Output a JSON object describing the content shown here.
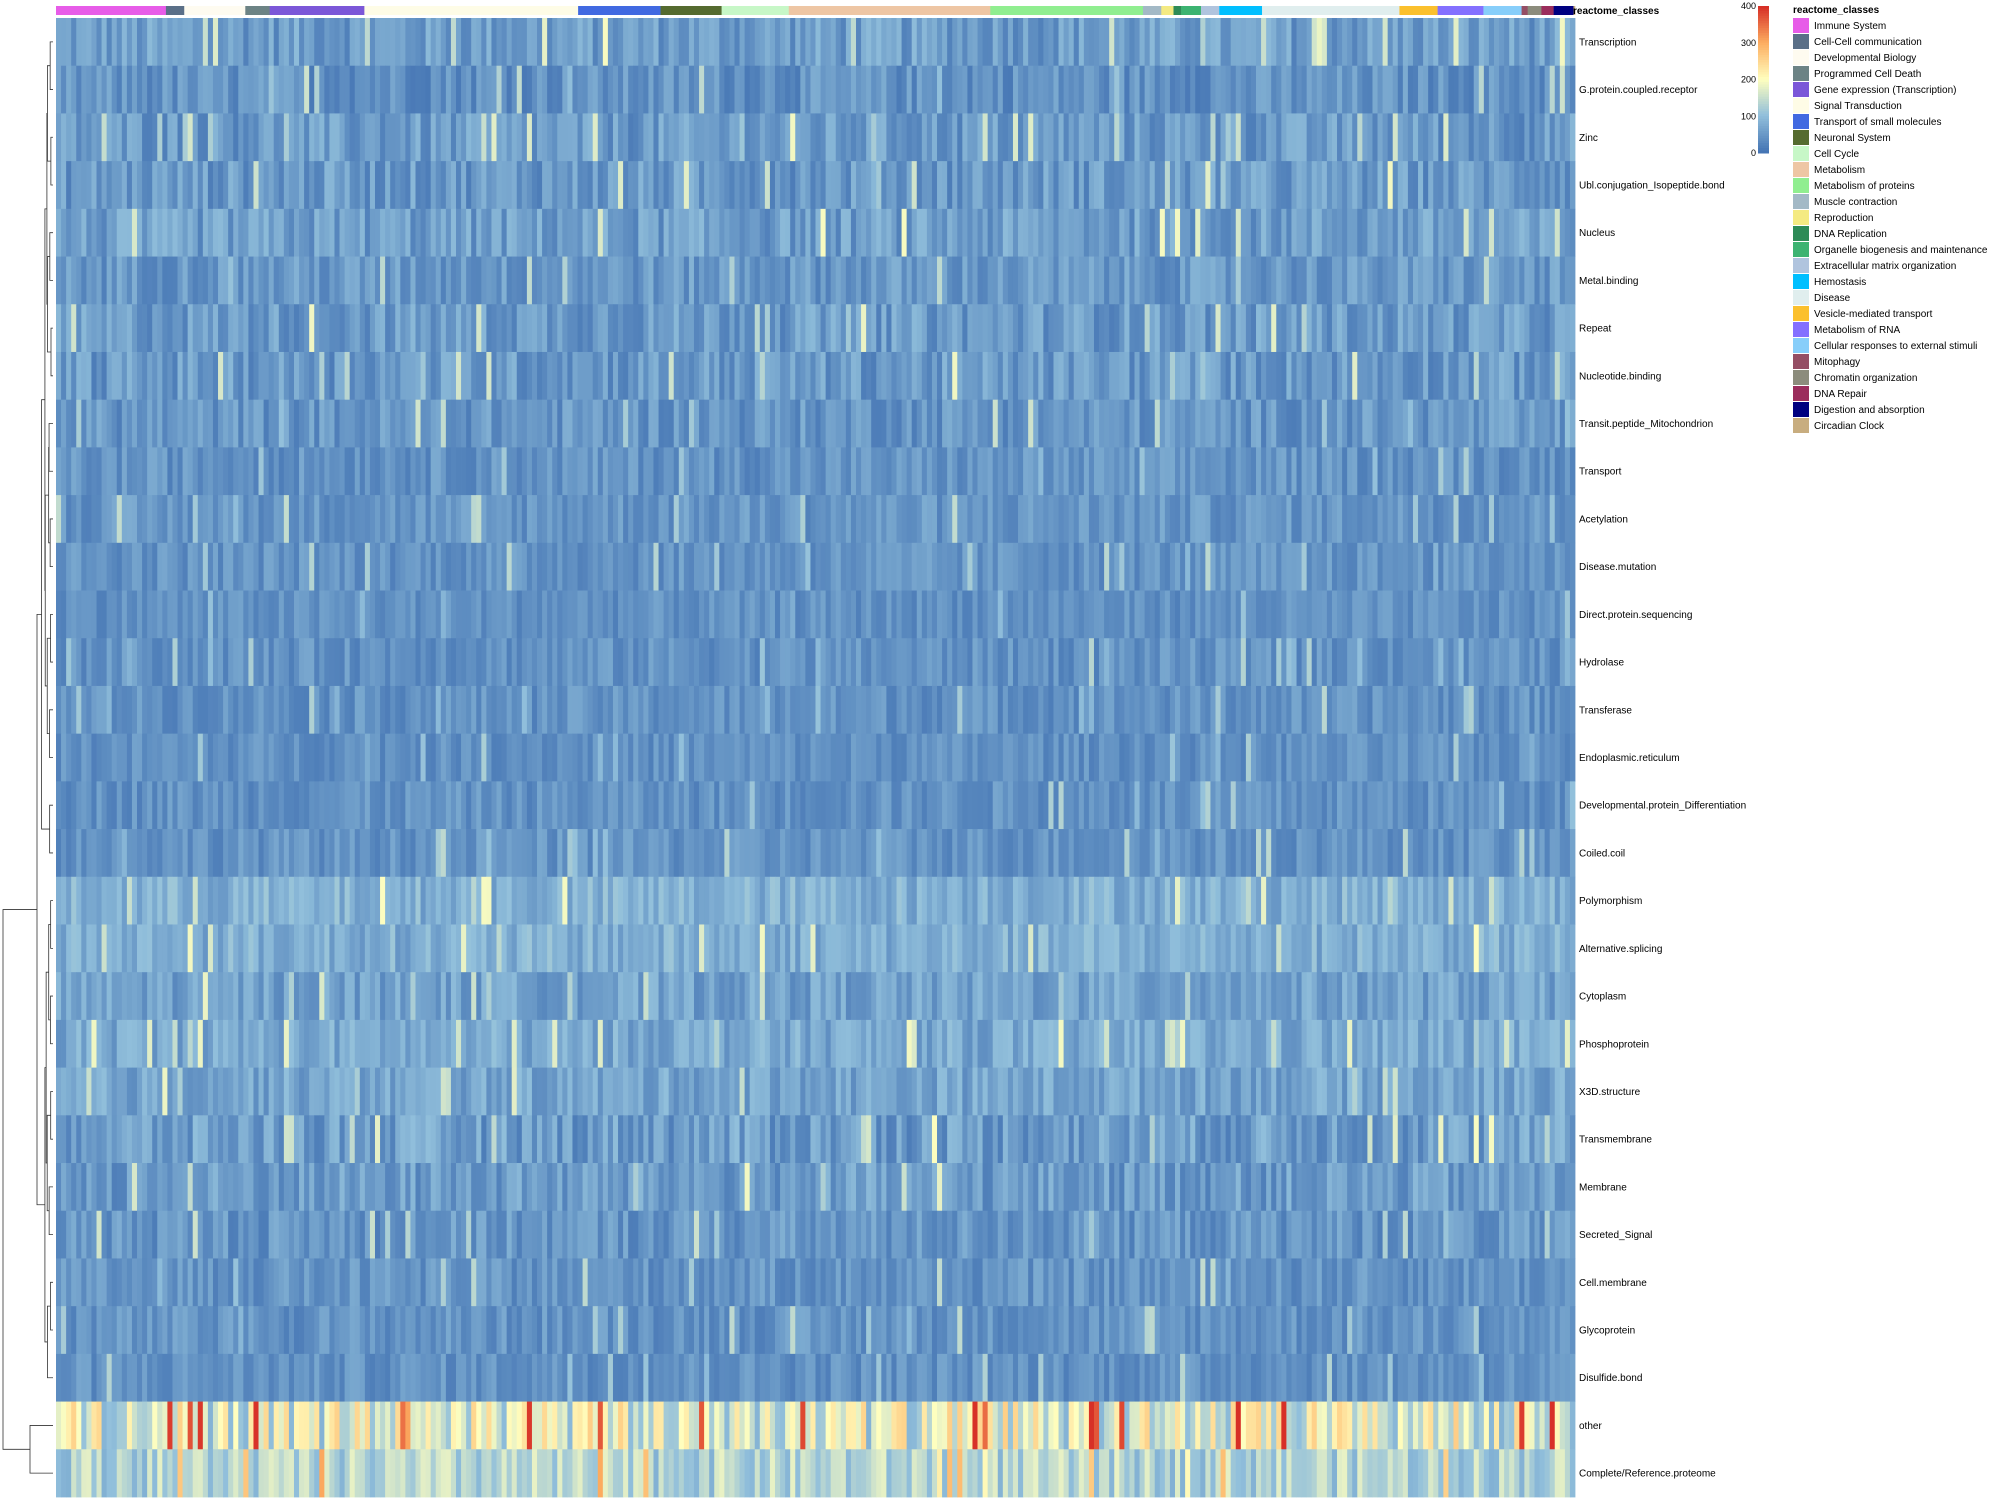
{
  "chart_data": {
    "type": "heatmap",
    "title": "",
    "annotation_label": "reactome_classes",
    "color_scale": {
      "min": 0,
      "max": 400,
      "ticks": [
        0,
        100,
        200,
        300,
        400
      ],
      "stops": [
        {
          "value": 0,
          "color": "#4575b4"
        },
        {
          "value": 100,
          "color": "#91bfdb"
        },
        {
          "value": 200,
          "color": "#ffffbf"
        },
        {
          "value": 300,
          "color": "#fdae61"
        },
        {
          "value": 400,
          "color": "#d73027"
        }
      ]
    },
    "legend_title": "reactome_classes",
    "reactome_classes": [
      {
        "name": "Immune System",
        "color": "#e75ce8",
        "share": 0.072
      },
      {
        "name": "Cell-Cell communication",
        "color": "#5a6f88",
        "share": 0.012
      },
      {
        "name": "Developmental Biology",
        "color": "#fefbf0",
        "share": 0.04
      },
      {
        "name": "Programmed Cell Death",
        "color": "#6c8385",
        "share": 0.016
      },
      {
        "name": "Gene expression (Transcription)",
        "color": "#7b57d8",
        "share": 0.062
      },
      {
        "name": "Signal Transduction",
        "color": "#fefce6",
        "share": 0.14
      },
      {
        "name": "Transport of small molecules",
        "color": "#4169e1",
        "share": 0.054
      },
      {
        "name": "Neuronal System",
        "color": "#556b2f",
        "share": 0.04
      },
      {
        "name": "Cell Cycle",
        "color": "#c7f7c7",
        "share": 0.044
      },
      {
        "name": "Metabolism",
        "color": "#eec6a4",
        "share": 0.132
      },
      {
        "name": "Metabolism of proteins",
        "color": "#90ee90",
        "share": 0.1
      },
      {
        "name": "Muscle contraction",
        "color": "#a3b9c6",
        "share": 0.012
      },
      {
        "name": "Reproduction",
        "color": "#f4ea82",
        "share": 0.008
      },
      {
        "name": "DNA Replication",
        "color": "#2e8b57",
        "share": 0.005
      },
      {
        "name": "Organelle biogenesis and maintenance",
        "color": "#3cb371",
        "share": 0.013
      },
      {
        "name": "Extracellular matrix organization",
        "color": "#b0c4de",
        "share": 0.012
      },
      {
        "name": "Hemostasis",
        "color": "#00bfff",
        "share": 0.028
      },
      {
        "name": "Disease",
        "color": "#e0eeee",
        "share": 0.09
      },
      {
        "name": "Vesicle-mediated transport",
        "color": "#fbc02d",
        "share": 0.025
      },
      {
        "name": "Metabolism of RNA",
        "color": "#8470ff",
        "share": 0.03
      },
      {
        "name": "Cellular responses to external stimuli",
        "color": "#87cefa",
        "share": 0.025
      },
      {
        "name": "Mitophagy",
        "color": "#954e64",
        "share": 0.004
      },
      {
        "name": "Chromatin organization",
        "color": "#8c8c7c",
        "share": 0.009
      },
      {
        "name": "DNA Repair",
        "color": "#9b2d5c",
        "share": 0.008
      },
      {
        "name": "Digestion and absorption",
        "color": "#000080",
        "share": 0.013
      },
      {
        "name": "Circadian Clock",
        "color": "#c8ad7f",
        "share": 0.001
      }
    ],
    "rows": [
      {
        "label": "Transcription",
        "mean": 55,
        "var": 40
      },
      {
        "label": "G.protein.coupled.receptor",
        "mean": 40,
        "var": 35
      },
      {
        "label": "Zinc",
        "mean": 50,
        "var": 40
      },
      {
        "label": "Ubl.conjugation_Isopeptide.bond",
        "mean": 50,
        "var": 40
      },
      {
        "label": "Nucleus",
        "mean": 55,
        "var": 40
      },
      {
        "label": "Metal.binding",
        "mean": 48,
        "var": 35
      },
      {
        "label": "Repeat",
        "mean": 52,
        "var": 40
      },
      {
        "label": "Nucleotide.binding",
        "mean": 50,
        "var": 40
      },
      {
        "label": "Transit.peptide_Mitochondrion",
        "mean": 45,
        "var": 35
      },
      {
        "label": "Transport",
        "mean": 42,
        "var": 30
      },
      {
        "label": "Acetylation",
        "mean": 45,
        "var": 30
      },
      {
        "label": "Disease.mutation",
        "mean": 42,
        "var": 28
      },
      {
        "label": "Direct.protein.sequencing",
        "mean": 38,
        "var": 25
      },
      {
        "label": "Hydrolase",
        "mean": 40,
        "var": 28
      },
      {
        "label": "Transferase",
        "mean": 40,
        "var": 28
      },
      {
        "label": "Endoplasmic.reticulum",
        "mean": 38,
        "var": 25
      },
      {
        "label": "Developmental.protein_Differentiation",
        "mean": 40,
        "var": 28
      },
      {
        "label": "Coiled.coil",
        "mean": 42,
        "var": 28
      },
      {
        "label": "Polymorphism",
        "mean": 80,
        "var": 35
      },
      {
        "label": "Alternative.splicing",
        "mean": 78,
        "var": 35
      },
      {
        "label": "Cytoplasm",
        "mean": 60,
        "var": 35
      },
      {
        "label": "Phosphoprotein",
        "mean": 70,
        "var": 35
      },
      {
        "label": "X3D.structure",
        "mean": 65,
        "var": 35
      },
      {
        "label": "Transmembrane",
        "mean": 55,
        "var": 45
      },
      {
        "label": "Membrane",
        "mean": 52,
        "var": 40
      },
      {
        "label": "Secreted_Signal",
        "mean": 45,
        "var": 35
      },
      {
        "label": "Cell.membrane",
        "mean": 42,
        "var": 30
      },
      {
        "label": "Glycoprotein",
        "mean": 42,
        "var": 30
      },
      {
        "label": "Disulfide.bond",
        "mean": 40,
        "var": 28
      },
      {
        "label": "other",
        "mean": 170,
        "var": 90
      },
      {
        "label": "Complete/Reference.proteome",
        "mean": 130,
        "var": 50
      }
    ],
    "n_columns": 300
  }
}
